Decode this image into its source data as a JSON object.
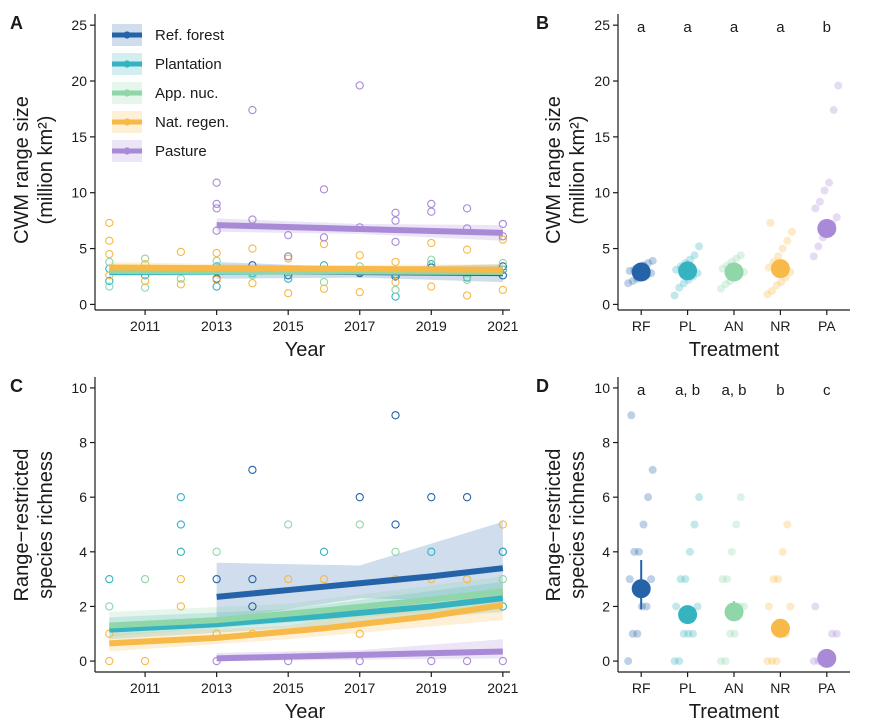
{
  "figure": {
    "panels": {
      "A": {
        "label": "A",
        "ylabel_line1": "CWM range size",
        "ylabel_line2": "(million km²)",
        "xlabel": "Year"
      },
      "B": {
        "label": "B",
        "ylabel_line1": "CWM range size",
        "ylabel_line2": "(million km²)",
        "xlabel": "Treatment"
      },
      "C": {
        "label": "C",
        "ylabel_line1": "Range−restricted",
        "ylabel_line2": "species richness",
        "xlabel": "Year"
      },
      "D": {
        "label": "D",
        "ylabel_line1": "Range−restricted",
        "ylabel_line2": "species richness",
        "xlabel": "Treatment"
      }
    },
    "legend": {
      "placement": "top-left of panel A",
      "entries": [
        {
          "key": "RF",
          "label": "Ref. forest"
        },
        {
          "key": "PL",
          "label": "Plantation"
        },
        {
          "key": "AN",
          "label": "App. nuc."
        },
        {
          "key": "NR",
          "label": "Nat. regen."
        },
        {
          "key": "PA",
          "label": "Pasture"
        }
      ]
    },
    "colors": {
      "RF": "#2563a8",
      "PL": "#35b3c1",
      "AN": "#8fd6a8",
      "NR": "#f7b947",
      "PA": "#a88ad6"
    }
  },
  "chart_data": [
    {
      "panel": "A",
      "type": "scatter",
      "xlabel": "Year",
      "ylabel": "CWM range size (million km²)",
      "xlim": [
        2009.6,
        2021.2
      ],
      "ylim": [
        -0.5,
        26
      ],
      "xticks": [
        2011,
        2013,
        2015,
        2017,
        2019,
        2021
      ],
      "yticks": [
        0,
        5,
        10,
        15,
        20,
        25
      ],
      "grid": false,
      "series": [
        {
          "key": "RF",
          "fit_x": [
            2013,
            2021
          ],
          "fit_y": [
            3.0,
            2.8
          ],
          "ci": [
            [
              2013,
              2.3,
              3.8
            ],
            [
              2017,
              2.4,
              3.3
            ],
            [
              2021,
              2.0,
              3.6
            ]
          ],
          "points": [
            [
              2013,
              2.3
            ],
            [
              2013,
              3.0
            ],
            [
              2014,
              3.5
            ],
            [
              2015,
              2.6
            ],
            [
              2016,
              3.1
            ],
            [
              2017,
              2.8
            ],
            [
              2018,
              2.5
            ],
            [
              2019,
              3.3
            ],
            [
              2020,
              2.9
            ],
            [
              2021,
              2.6
            ],
            [
              2021,
              3.4
            ]
          ]
        },
        {
          "key": "PL",
          "fit_x": [
            2010,
            2021
          ],
          "fit_y": [
            2.9,
            3.0
          ],
          "ci": [
            [
              2010,
              2.5,
              3.3
            ],
            [
              2015,
              2.7,
              3.2
            ],
            [
              2021,
              2.6,
              3.4
            ]
          ],
          "points": [
            [
              2010,
              2.1
            ],
            [
              2010,
              3.2
            ],
            [
              2011,
              2.6
            ],
            [
              2012,
              3.0
            ],
            [
              2013,
              1.6
            ],
            [
              2013,
              3.4
            ],
            [
              2014,
              2.8
            ],
            [
              2015,
              2.3
            ],
            [
              2016,
              3.5
            ],
            [
              2017,
              2.9
            ],
            [
              2018,
              0.7
            ],
            [
              2018,
              2.7
            ],
            [
              2019,
              3.6
            ],
            [
              2020,
              2.4
            ],
            [
              2021,
              3.1
            ]
          ]
        },
        {
          "key": "AN",
          "fit_x": [
            2010,
            2021
          ],
          "fit_y": [
            3.0,
            2.9
          ],
          "ci": [
            [
              2010,
              2.6,
              3.4
            ],
            [
              2015,
              2.8,
              3.2
            ],
            [
              2021,
              2.5,
              3.3
            ]
          ],
          "points": [
            [
              2010,
              1.6
            ],
            [
              2010,
              3.8
            ],
            [
              2011,
              4.1
            ],
            [
              2011,
              1.5
            ],
            [
              2012,
              2.3
            ],
            [
              2013,
              3.9
            ],
            [
              2014,
              2.6
            ],
            [
              2015,
              4.3
            ],
            [
              2016,
              2.0
            ],
            [
              2017,
              3.4
            ],
            [
              2018,
              1.3
            ],
            [
              2019,
              4.0
            ],
            [
              2020,
              2.2
            ],
            [
              2021,
              3.7
            ]
          ]
        },
        {
          "key": "NR",
          "fit_x": [
            2010,
            2021
          ],
          "fit_y": [
            3.3,
            3.1
          ],
          "ci": [
            [
              2010,
              2.8,
              3.8
            ],
            [
              2015,
              3.0,
              3.5
            ],
            [
              2021,
              2.6,
              3.6
            ]
          ],
          "points": [
            [
              2010,
              7.3
            ],
            [
              2010,
              5.7
            ],
            [
              2010,
              4.5
            ],
            [
              2010,
              2.6
            ],
            [
              2011,
              3.6
            ],
            [
              2011,
              2.1
            ],
            [
              2012,
              4.7
            ],
            [
              2012,
              1.8
            ],
            [
              2013,
              4.6
            ],
            [
              2013,
              2.2
            ],
            [
              2014,
              5.0
            ],
            [
              2014,
              1.9
            ],
            [
              2015,
              1.0
            ],
            [
              2015,
              4.1
            ],
            [
              2016,
              5.4
            ],
            [
              2016,
              1.4
            ],
            [
              2017,
              4.4
            ],
            [
              2017,
              1.1
            ],
            [
              2018,
              3.8
            ],
            [
              2018,
              2.0
            ],
            [
              2019,
              5.5
            ],
            [
              2019,
              1.6
            ],
            [
              2020,
              0.8
            ],
            [
              2020,
              4.9
            ],
            [
              2021,
              5.8
            ],
            [
              2021,
              1.3
            ]
          ]
        },
        {
          "key": "PA",
          "fit_x": [
            2013,
            2021
          ],
          "fit_y": [
            7.1,
            6.4
          ],
          "ci": [
            [
              2013,
              6.5,
              7.7
            ],
            [
              2017,
              6.3,
              7.2
            ],
            [
              2021,
              5.7,
              7.1
            ]
          ],
          "points": [
            [
              2013,
              10.9
            ],
            [
              2013,
              9.0
            ],
            [
              2013,
              8.6
            ],
            [
              2013,
              6.6
            ],
            [
              2014,
              17.4
            ],
            [
              2014,
              7.6
            ],
            [
              2015,
              6.2
            ],
            [
              2015,
              4.3
            ],
            [
              2016,
              10.3
            ],
            [
              2016,
              6.0
            ],
            [
              2017,
              19.6
            ],
            [
              2017,
              6.9
            ],
            [
              2018,
              8.2
            ],
            [
              2018,
              7.5
            ],
            [
              2018,
              5.6
            ],
            [
              2019,
              9.0
            ],
            [
              2019,
              8.3
            ],
            [
              2020,
              8.6
            ],
            [
              2020,
              6.8
            ],
            [
              2021,
              7.2
            ],
            [
              2021,
              6.1
            ]
          ]
        }
      ]
    },
    {
      "panel": "B",
      "type": "scatter",
      "xlabel": "Treatment",
      "ylabel": "CWM range size (million km²)",
      "categories": [
        "RF",
        "PL",
        "AN",
        "NR",
        "PA"
      ],
      "ylim": [
        -0.5,
        26
      ],
      "yticks": [
        0,
        5,
        10,
        15,
        20,
        25
      ],
      "significance_letters": [
        "a",
        "a",
        "a",
        "a",
        "b"
      ],
      "means": [
        2.9,
        3.0,
        2.9,
        3.2,
        6.8
      ],
      "raw_points": {
        "RF": [
          1.9,
          2.1,
          2.3,
          2.5,
          2.6,
          2.8,
          3.0,
          3.1,
          3.3,
          3.5,
          3.7,
          3.9
        ],
        "PL": [
          0.8,
          1.5,
          1.9,
          2.2,
          2.5,
          2.8,
          3.1,
          3.4,
          3.7,
          4.0,
          4.4,
          5.2
        ],
        "AN": [
          1.4,
          1.8,
          2.1,
          2.4,
          2.7,
          2.9,
          3.2,
          3.5,
          3.8,
          4.1,
          4.4
        ],
        "NR": [
          0.9,
          1.2,
          1.7,
          2.0,
          2.4,
          2.9,
          3.3,
          3.8,
          4.3,
          5.0,
          5.7,
          6.5,
          7.3
        ],
        "PA": [
          4.3,
          5.2,
          6.0,
          6.6,
          7.2,
          7.8,
          8.6,
          9.2,
          10.2,
          10.9,
          17.4,
          19.6
        ]
      }
    },
    {
      "panel": "C",
      "type": "scatter",
      "xlabel": "Year",
      "ylabel": "Range−restricted species richness",
      "xlim": [
        2009.6,
        2021.2
      ],
      "ylim": [
        -0.4,
        10.4
      ],
      "xticks": [
        2011,
        2013,
        2015,
        2017,
        2019,
        2021
      ],
      "yticks": [
        0,
        2,
        4,
        6,
        8,
        10
      ],
      "grid": false,
      "series": [
        {
          "key": "RF",
          "fit_x": [
            2013,
            2015,
            2017,
            2019,
            2021
          ],
          "fit_y": [
            2.35,
            2.6,
            2.85,
            3.1,
            3.4
          ],
          "ci": [
            [
              2013,
              1.5,
              3.6
            ],
            [
              2017,
              2.3,
              3.5
            ],
            [
              2021,
              2.2,
              5.1
            ]
          ],
          "points": [
            [
              2013,
              3
            ],
            [
              2014,
              7
            ],
            [
              2014,
              3
            ],
            [
              2014,
              2
            ],
            [
              2017,
              6
            ],
            [
              2018,
              9
            ],
            [
              2018,
              5
            ],
            [
              2019,
              6
            ],
            [
              2020,
              6
            ],
            [
              2021,
              4
            ]
          ]
        },
        {
          "key": "PL",
          "fit_x": [
            2010,
            2013,
            2016,
            2019,
            2021
          ],
          "fit_y": [
            1.15,
            1.35,
            1.65,
            2.0,
            2.3
          ],
          "ci": [
            [
              2010,
              0.8,
              1.6
            ],
            [
              2015,
              1.2,
              1.9
            ],
            [
              2021,
              1.8,
              2.9
            ]
          ],
          "points": [
            [
              2010,
              3
            ],
            [
              2012,
              6
            ],
            [
              2012,
              5
            ],
            [
              2012,
              4
            ],
            [
              2016,
              4
            ],
            [
              2019,
              4
            ],
            [
              2021,
              4
            ],
            [
              2021,
              2
            ]
          ]
        },
        {
          "key": "AN",
          "fit_x": [
            2010,
            2013,
            2016,
            2019,
            2021
          ],
          "fit_y": [
            1.3,
            1.5,
            1.85,
            2.25,
            2.55
          ],
          "ci": [
            [
              2010,
              0.9,
              1.8
            ],
            [
              2015,
              1.4,
              2.1
            ],
            [
              2021,
              2.0,
              3.1
            ]
          ],
          "points": [
            [
              2010,
              2
            ],
            [
              2011,
              3
            ],
            [
              2013,
              4
            ],
            [
              2013,
              1
            ],
            [
              2015,
              5
            ],
            [
              2017,
              5
            ],
            [
              2018,
              4
            ],
            [
              2021,
              3
            ]
          ]
        },
        {
          "key": "NR",
          "fit_x": [
            2010,
            2013,
            2016,
            2019,
            2021
          ],
          "fit_y": [
            0.65,
            0.85,
            1.2,
            1.65,
            2.05
          ],
          "ci": [
            [
              2010,
              0.35,
              1.0
            ],
            [
              2015,
              0.8,
              1.3
            ],
            [
              2021,
              1.5,
              2.7
            ]
          ],
          "points": [
            [
              2010,
              1
            ],
            [
              2010,
              0
            ],
            [
              2011,
              0
            ],
            [
              2012,
              3
            ],
            [
              2012,
              2
            ],
            [
              2013,
              1
            ],
            [
              2014,
              1
            ],
            [
              2015,
              3
            ],
            [
              2016,
              3
            ],
            [
              2017,
              1
            ],
            [
              2018,
              3
            ],
            [
              2019,
              3
            ],
            [
              2020,
              3
            ],
            [
              2021,
              5
            ]
          ]
        },
        {
          "key": "PA",
          "fit_x": [
            2013,
            2021
          ],
          "fit_y": [
            0.1,
            0.35
          ],
          "ci": [
            [
              2013,
              0.0,
              0.3
            ],
            [
              2017,
              0.05,
              0.4
            ],
            [
              2021,
              0.1,
              0.8
            ]
          ],
          "points": [
            [
              2013,
              0
            ],
            [
              2015,
              0
            ],
            [
              2017,
              0
            ],
            [
              2019,
              0
            ],
            [
              2020,
              0
            ],
            [
              2021,
              0
            ]
          ]
        }
      ]
    },
    {
      "panel": "D",
      "type": "scatter",
      "xlabel": "Treatment",
      "ylabel": "Range−restricted species richness",
      "categories": [
        "RF",
        "PL",
        "AN",
        "NR",
        "PA"
      ],
      "ylim": [
        -0.4,
        10.4
      ],
      "yticks": [
        0,
        2,
        4,
        6,
        8,
        10
      ],
      "significance_letters": [
        "a",
        "a, b",
        "a, b",
        "b",
        "c"
      ],
      "means": [
        2.65,
        1.7,
        1.8,
        1.2,
        0.1
      ],
      "error_bars": [
        [
          1.9,
          3.7
        ],
        [
          1.4,
          2.0
        ],
        [
          1.5,
          2.2
        ],
        [
          0.9,
          1.5
        ],
        [
          0.0,
          0.3
        ]
      ],
      "raw_points": {
        "RF": [
          0,
          1,
          1,
          2,
          2,
          3,
          3,
          4,
          4,
          5,
          6,
          7,
          9
        ],
        "PL": [
          0,
          0,
          1,
          1,
          1,
          2,
          2,
          3,
          3,
          4,
          5,
          6
        ],
        "AN": [
          0,
          0,
          1,
          1,
          2,
          2,
          3,
          3,
          4,
          5,
          6
        ],
        "NR": [
          0,
          0,
          0,
          1,
          1,
          2,
          2,
          3,
          3,
          4,
          5
        ],
        "PA": [
          0,
          0,
          0,
          0,
          1,
          1,
          2
        ]
      }
    }
  ]
}
